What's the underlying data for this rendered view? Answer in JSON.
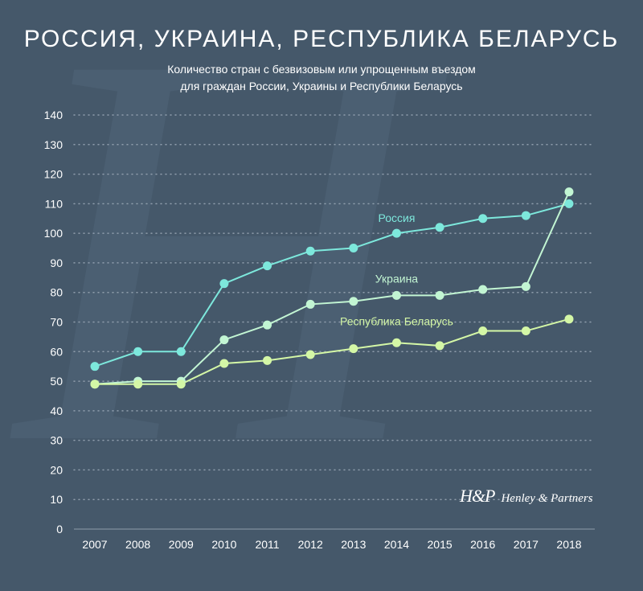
{
  "header": {
    "title": "РОССИЯ, УКРАИНА, РЕСПУБЛИКА БЕЛАРУСЬ",
    "subtitle_line1": "Количество стран с безвизовым или упрощенным въездом",
    "subtitle_line2": "для граждан России, Украины и Республики Беларусь"
  },
  "branding": {
    "monogram": "H&P",
    "name": "Henley & Partners"
  },
  "colors": {
    "background": "#45586a",
    "russia": "#7de8dc",
    "ukraine": "#c2f5d3",
    "belarus": "#d4f7a6",
    "text": "#ffffff",
    "grid": "#8e9cab"
  },
  "chart_data": {
    "type": "line",
    "title": "РОССИЯ, УКРАИНА, РЕСПУБЛИКА БЕЛАРУСЬ",
    "subtitle": "Количество стран с безвизовым или упрощенным въездом для граждан России, Украины и Республики Беларусь",
    "xlabel": "",
    "ylabel": "",
    "x": [
      "2007",
      "2008",
      "2009",
      "2010",
      "2011",
      "2012",
      "2013",
      "2014",
      "2015",
      "2016",
      "2017",
      "2018"
    ],
    "ylim": [
      0,
      140
    ],
    "yticks": [
      0,
      10,
      20,
      30,
      40,
      50,
      60,
      70,
      80,
      90,
      100,
      110,
      120,
      130,
      140
    ],
    "grid": "horizontal dotted",
    "series": [
      {
        "name": "Россия",
        "color": "#7de8dc",
        "label_near": "2014",
        "values": [
          55,
          60,
          60,
          83,
          89,
          94,
          95,
          100,
          102,
          105,
          106,
          110
        ]
      },
      {
        "name": "Украина",
        "color": "#c2f5d3",
        "label_near": "2014",
        "values": [
          49,
          50,
          50,
          64,
          69,
          76,
          77,
          79,
          79,
          81,
          82,
          114
        ]
      },
      {
        "name": "Республика Беларусь",
        "color": "#d4f7a6",
        "label_near": "2014",
        "values": [
          49,
          49,
          49,
          56,
          57,
          59,
          61,
          63,
          62,
          67,
          67,
          71
        ]
      }
    ]
  }
}
